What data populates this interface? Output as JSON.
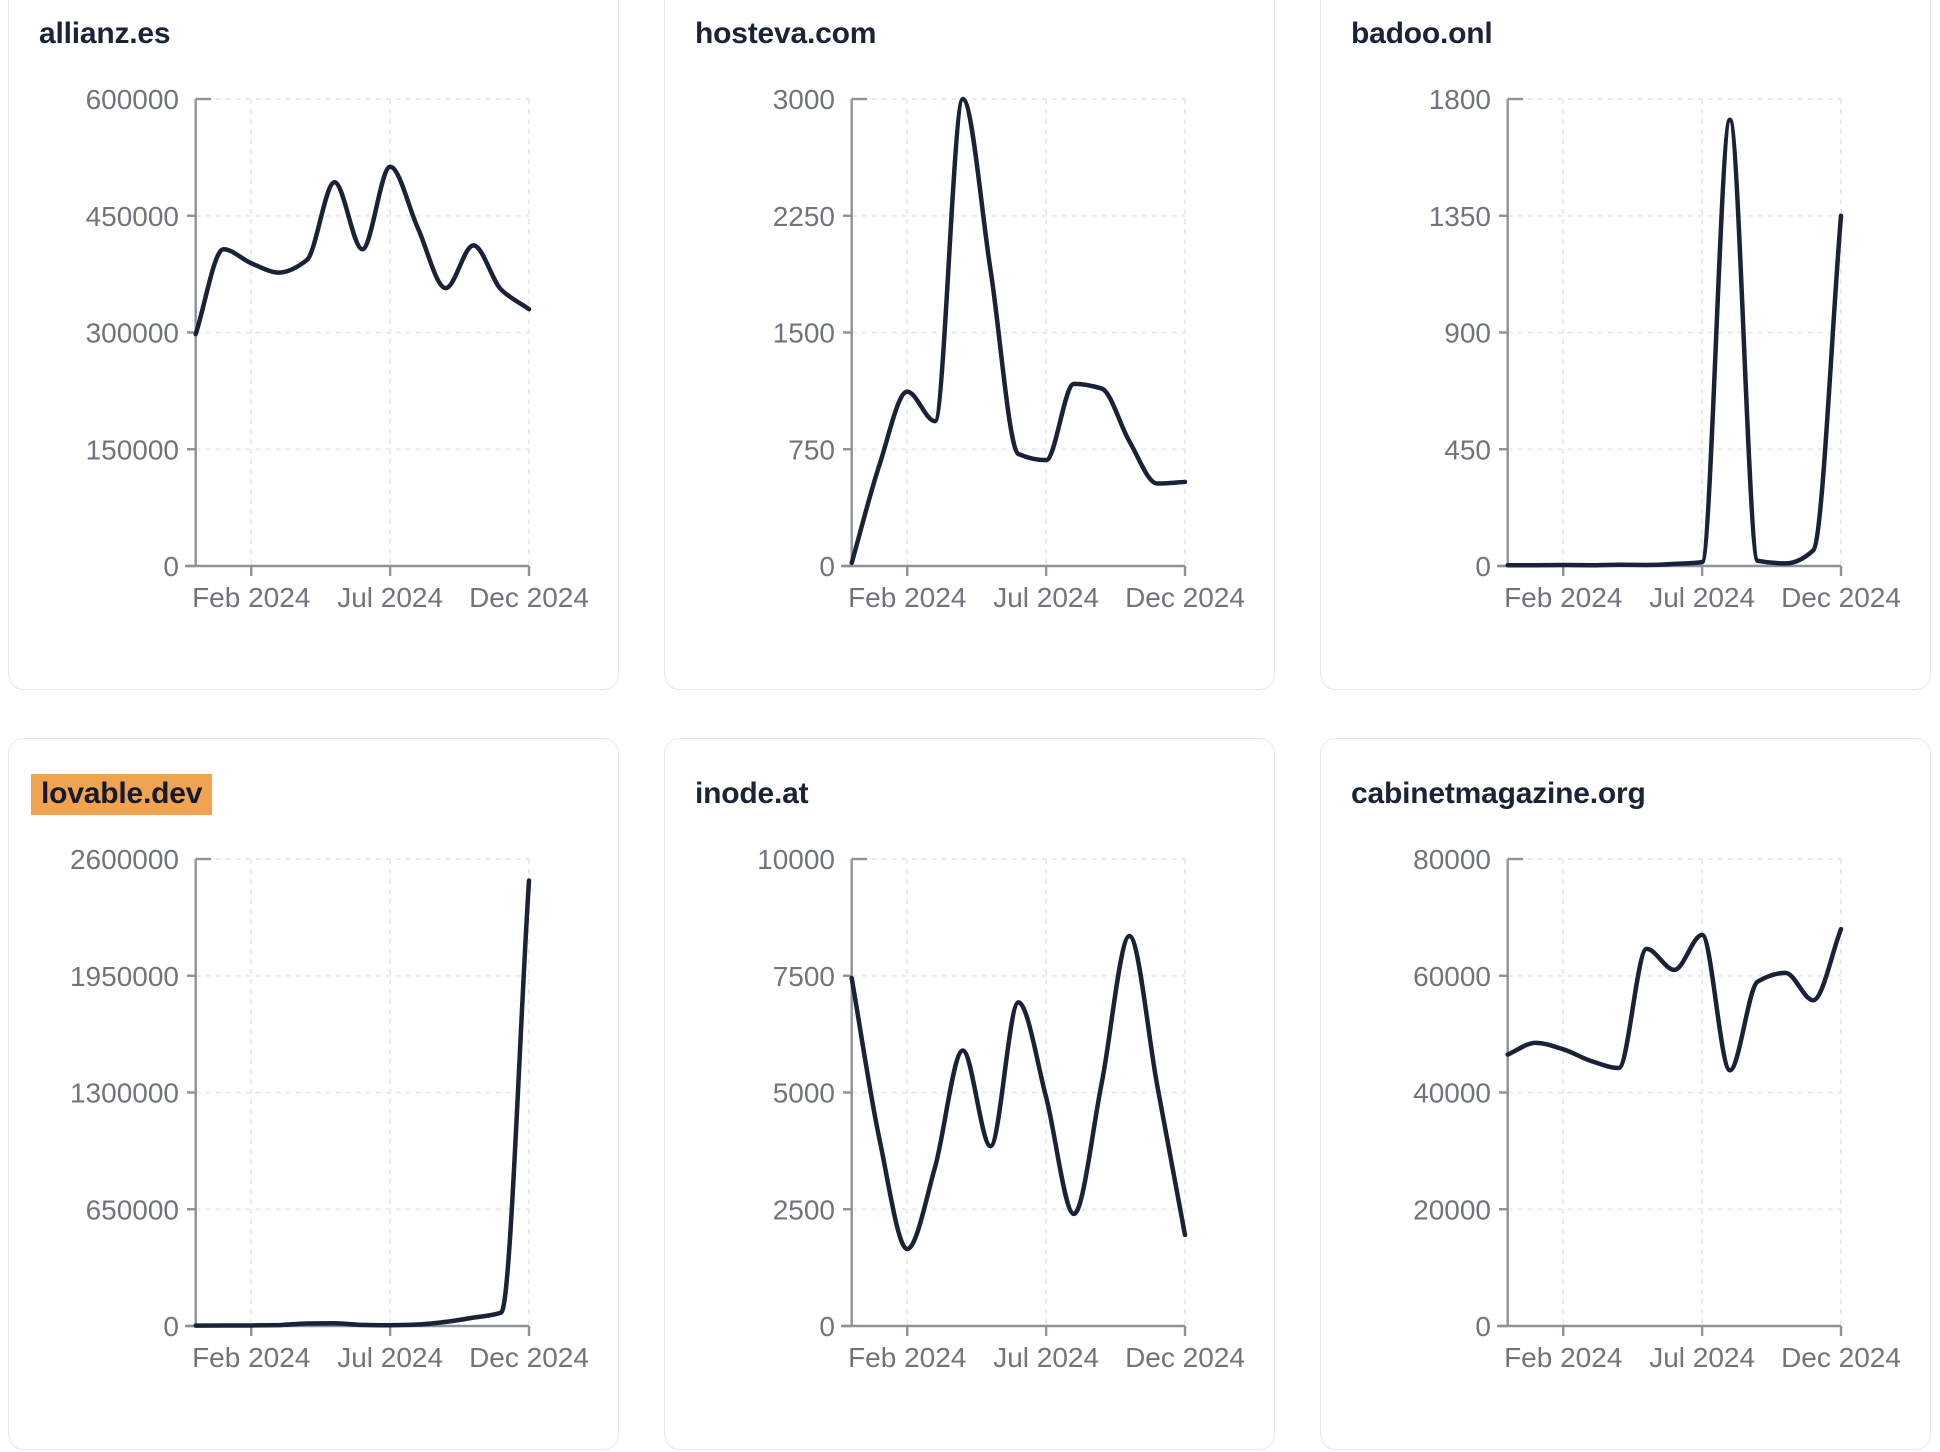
{
  "page": {
    "background": "#ffffff"
  },
  "theme": {
    "line_color": "#1b2237",
    "title_color": "#1b2437",
    "axis_color": "#8d929b",
    "tick_text_color": "#6f747d",
    "gridline_color": "#e8eaee",
    "card_border_color": "#e7e9f0",
    "card_background": "#ffffff",
    "highlight_background": "#f0a351",
    "highlight_text_color": "#15192b"
  },
  "x_axis": {
    "tick_labels": [
      "Feb 2024",
      "Jul 2024",
      "Dec 2024"
    ],
    "tick_month_indices": [
      2,
      7,
      12
    ],
    "start_month": "Dec 2023",
    "end_month": "Dec 2024",
    "points_count": 13
  },
  "chart_data": [
    {
      "type": "line",
      "title": "allianz.es",
      "highlighted": false,
      "ylim": [
        0,
        600000
      ],
      "y_tick_labels": [
        "600000",
        "450000",
        "300000",
        "150000",
        "0"
      ],
      "xlabel": "",
      "ylabel": "",
      "grid": true,
      "legend": false,
      "values": [
        298000,
        407000,
        389000,
        377000,
        393000,
        493000,
        407000,
        513000,
        434000,
        357000,
        412000,
        355000,
        330000
      ]
    },
    {
      "type": "line",
      "title": "hosteva.com",
      "highlighted": false,
      "ylim": [
        0,
        3000
      ],
      "y_tick_labels": [
        "3000",
        "2250",
        "1500",
        "750",
        "0"
      ],
      "xlabel": "",
      "ylabel": "",
      "grid": true,
      "legend": false,
      "values": [
        20,
        650,
        1120,
        930,
        3000,
        1900,
        720,
        680,
        1170,
        1140,
        800,
        530,
        540
      ]
    },
    {
      "type": "line",
      "title": "badoo.onl",
      "highlighted": false,
      "ylim": [
        0,
        1800
      ],
      "y_tick_labels": [
        "1800",
        "1350",
        "900",
        "450",
        "0"
      ],
      "xlabel": "",
      "ylabel": "",
      "grid": true,
      "legend": false,
      "values": [
        3,
        3,
        4,
        3,
        5,
        4,
        8,
        15,
        1720,
        20,
        10,
        60,
        1350
      ]
    },
    {
      "type": "line",
      "title": "lovable.dev",
      "highlighted": true,
      "ylim": [
        0,
        2600000
      ],
      "y_tick_labels": [
        "2600000",
        "1950000",
        "1300000",
        "650000",
        "0"
      ],
      "xlabel": "",
      "ylabel": "",
      "grid": true,
      "legend": false,
      "values": [
        2000,
        2500,
        3000,
        5000,
        14000,
        15000,
        6000,
        4000,
        8000,
        23000,
        46500,
        75000,
        2480000
      ]
    },
    {
      "type": "line",
      "title": "inode.at",
      "highlighted": false,
      "ylim": [
        0,
        10000
      ],
      "y_tick_labels": [
        "10000",
        "7500",
        "5000",
        "2500",
        "0"
      ],
      "xlabel": "",
      "ylabel": "",
      "grid": true,
      "legend": false,
      "values": [
        7450,
        4000,
        1650,
        3400,
        5900,
        3850,
        6930,
        4900,
        2400,
        5200,
        8350,
        5150,
        1950
      ]
    },
    {
      "type": "line",
      "title": "cabinetmagazine.org",
      "highlighted": false,
      "ylim": [
        0,
        80000
      ],
      "y_tick_labels": [
        "80000",
        "60000",
        "40000",
        "20000",
        "0"
      ],
      "xlabel": "",
      "ylabel": "",
      "grid": true,
      "legend": false,
      "values": [
        46500,
        48500,
        47400,
        45400,
        44200,
        64600,
        61000,
        67000,
        43800,
        59000,
        60500,
        55800,
        68000
      ]
    }
  ]
}
